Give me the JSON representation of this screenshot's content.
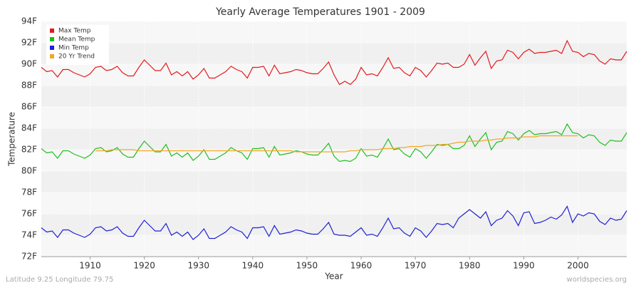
{
  "chart_data": {
    "type": "line",
    "title": "Yearly Average Temperatures 1901 - 2009",
    "x_label": "Year",
    "y_label": "Temperature",
    "footer_left": "Latitude 9.25 Longitude 79.75",
    "footer_right": "worldspecies.org",
    "legend": "top-left",
    "grid": true,
    "xlim": [
      1901,
      2009
    ],
    "xticks": [
      1910,
      1920,
      1930,
      1940,
      1950,
      1960,
      1970,
      1980,
      1990,
      2000
    ],
    "ylim": [
      72,
      94
    ],
    "yticks": [
      {
        "value": 72,
        "label": "72F"
      },
      {
        "value": 74,
        "label": "74F"
      },
      {
        "value": 76,
        "label": "76F"
      },
      {
        "value": 78,
        "label": "78F"
      },
      {
        "value": 80,
        "label": "80F"
      },
      {
        "value": 82,
        "label": "82F"
      },
      {
        "value": 84,
        "label": "84F"
      },
      {
        "value": 86,
        "label": "86F"
      },
      {
        "value": 88,
        "label": "88F"
      },
      {
        "value": 90,
        "label": "90F"
      },
      {
        "value": 92,
        "label": "92F"
      },
      {
        "value": 94,
        "label": "94F"
      }
    ],
    "x": [
      1901,
      1902,
      1903,
      1904,
      1905,
      1906,
      1907,
      1908,
      1909,
      1910,
      1911,
      1912,
      1913,
      1914,
      1915,
      1916,
      1917,
      1918,
      1919,
      1920,
      1921,
      1922,
      1923,
      1924,
      1925,
      1926,
      1927,
      1928,
      1929,
      1930,
      1931,
      1932,
      1933,
      1934,
      1935,
      1936,
      1937,
      1938,
      1939,
      1940,
      1941,
      1942,
      1943,
      1944,
      1945,
      1946,
      1947,
      1948,
      1949,
      1950,
      1951,
      1952,
      1953,
      1954,
      1955,
      1956,
      1957,
      1958,
      1959,
      1960,
      1961,
      1962,
      1963,
      1964,
      1965,
      1966,
      1967,
      1968,
      1969,
      1970,
      1971,
      1972,
      1973,
      1974,
      1975,
      1976,
      1977,
      1978,
      1979,
      1980,
      1981,
      1982,
      1983,
      1984,
      1985,
      1986,
      1987,
      1988,
      1989,
      1990,
      1991,
      1992,
      1993,
      1994,
      1995,
      1996,
      1997,
      1998,
      1999,
      2000,
      2001,
      2002,
      2003,
      2004,
      2005,
      2006,
      2007,
      2008,
      2009
    ],
    "series": [
      {
        "name": "Max Temp",
        "color": "#e31a1c",
        "values": [
          89.7,
          89.3,
          89.4,
          88.8,
          89.5,
          89.5,
          89.2,
          89.0,
          88.8,
          89.1,
          89.7,
          89.8,
          89.4,
          89.5,
          89.8,
          89.2,
          88.9,
          88.9,
          89.7,
          90.4,
          89.9,
          89.4,
          89.4,
          90.1,
          89.0,
          89.3,
          88.9,
          89.3,
          88.6,
          89.0,
          89.6,
          88.7,
          88.7,
          89.0,
          89.3,
          89.8,
          89.5,
          89.3,
          88.7,
          89.7,
          89.7,
          89.8,
          88.9,
          89.9,
          89.1,
          89.2,
          89.3,
          89.5,
          89.4,
          89.2,
          89.1,
          89.1,
          89.6,
          90.2,
          89.0,
          88.1,
          88.4,
          88.1,
          88.6,
          89.7,
          89.0,
          89.1,
          88.9,
          89.7,
          90.6,
          89.6,
          89.7,
          89.2,
          88.9,
          89.7,
          89.4,
          88.8,
          89.4,
          90.1,
          90.0,
          90.1,
          89.7,
          89.7,
          90.0,
          90.9,
          89.9,
          90.6,
          91.2,
          89.6,
          90.3,
          90.4,
          91.3,
          91.1,
          90.5,
          91.1,
          91.4,
          91.0,
          91.1,
          91.1,
          91.2,
          91.3,
          91.0,
          92.2,
          91.2,
          91.1,
          90.7,
          91.0,
          90.9,
          90.3,
          90.0,
          90.5,
          90.4,
          90.4,
          91.2
        ]
      },
      {
        "name": "Mean Temp",
        "color": "#1fbf1f",
        "values": [
          82.1,
          81.7,
          81.8,
          81.2,
          81.9,
          81.9,
          81.6,
          81.4,
          81.2,
          81.5,
          82.1,
          82.2,
          81.8,
          81.9,
          82.2,
          81.6,
          81.3,
          81.3,
          82.1,
          82.8,
          82.3,
          81.8,
          81.8,
          82.5,
          81.4,
          81.7,
          81.3,
          81.7,
          81.0,
          81.4,
          82.0,
          81.1,
          81.1,
          81.4,
          81.7,
          82.2,
          81.9,
          81.7,
          81.1,
          82.1,
          82.1,
          82.2,
          81.3,
          82.3,
          81.5,
          81.6,
          81.7,
          81.9,
          81.8,
          81.6,
          81.5,
          81.5,
          82.0,
          82.6,
          81.4,
          80.9,
          81.0,
          80.9,
          81.2,
          82.1,
          81.4,
          81.5,
          81.3,
          82.1,
          83.0,
          82.0,
          82.1,
          81.6,
          81.3,
          82.1,
          81.8,
          81.2,
          81.8,
          82.5,
          82.4,
          82.5,
          82.1,
          82.1,
          82.4,
          83.3,
          82.3,
          83.0,
          83.6,
          82.0,
          82.7,
          82.8,
          83.7,
          83.5,
          82.9,
          83.5,
          83.8,
          83.4,
          83.5,
          83.5,
          83.6,
          83.7,
          83.4,
          84.4,
          83.6,
          83.5,
          83.1,
          83.4,
          83.3,
          82.7,
          82.4,
          82.9,
          82.8,
          82.8,
          83.6
        ]
      },
      {
        "name": "Min Temp",
        "color": "#1f1fd6",
        "values": [
          74.7,
          74.3,
          74.4,
          73.8,
          74.5,
          74.5,
          74.2,
          74.0,
          73.8,
          74.1,
          74.7,
          74.8,
          74.4,
          74.5,
          74.8,
          74.2,
          73.9,
          73.9,
          74.7,
          75.4,
          74.9,
          74.4,
          74.4,
          75.1,
          74.0,
          74.3,
          73.9,
          74.3,
          73.6,
          74.0,
          74.6,
          73.7,
          73.7,
          74.0,
          74.3,
          74.8,
          74.5,
          74.3,
          73.7,
          74.7,
          74.7,
          74.8,
          73.9,
          74.9,
          74.1,
          74.2,
          74.3,
          74.5,
          74.4,
          74.2,
          74.1,
          74.1,
          74.6,
          75.2,
          74.1,
          74.0,
          74.0,
          73.9,
          74.3,
          74.7,
          74.0,
          74.1,
          73.9,
          74.7,
          75.6,
          74.6,
          74.7,
          74.2,
          73.9,
          74.7,
          74.4,
          73.8,
          74.4,
          75.1,
          75.0,
          75.1,
          74.7,
          75.6,
          76.0,
          76.4,
          76.0,
          75.6,
          76.2,
          74.9,
          75.4,
          75.6,
          76.3,
          75.8,
          74.9,
          76.1,
          76.2,
          75.1,
          75.2,
          75.4,
          75.7,
          75.5,
          75.9,
          76.7,
          75.2,
          76.0,
          75.8,
          76.1,
          76.0,
          75.3,
          75.0,
          75.6,
          75.4,
          75.5,
          76.3
        ]
      },
      {
        "name": "20 Yr Trend",
        "color": "#f5a623",
        "values": [
          null,
          null,
          null,
          null,
          null,
          null,
          null,
          null,
          null,
          null,
          81.9,
          81.9,
          81.9,
          82.0,
          82.0,
          82.0,
          82.0,
          82.0,
          81.9,
          81.9,
          81.9,
          81.9,
          81.9,
          81.9,
          81.9,
          81.9,
          81.9,
          81.9,
          81.9,
          81.9,
          81.9,
          81.9,
          81.9,
          81.9,
          81.9,
          81.9,
          81.9,
          81.9,
          81.9,
          81.9,
          81.9,
          81.9,
          81.9,
          81.9,
          81.9,
          81.9,
          81.9,
          81.8,
          81.8,
          81.8,
          81.8,
          81.8,
          81.8,
          81.8,
          81.8,
          81.8,
          81.8,
          81.9,
          81.9,
          82.0,
          82.0,
          82.0,
          82.0,
          82.1,
          82.1,
          82.1,
          82.2,
          82.2,
          82.3,
          82.3,
          82.3,
          82.4,
          82.4,
          82.4,
          82.5,
          82.5,
          82.6,
          82.7,
          82.7,
          82.8,
          82.8,
          82.8,
          82.9,
          82.9,
          83.0,
          83.0,
          83.1,
          83.1,
          83.1,
          83.2,
          83.2,
          83.2,
          83.3,
          83.3,
          83.3,
          83.3,
          83.3,
          83.3,
          83.3,
          83.3,
          null,
          null,
          null,
          null,
          null,
          null,
          null,
          null,
          null
        ]
      }
    ]
  }
}
